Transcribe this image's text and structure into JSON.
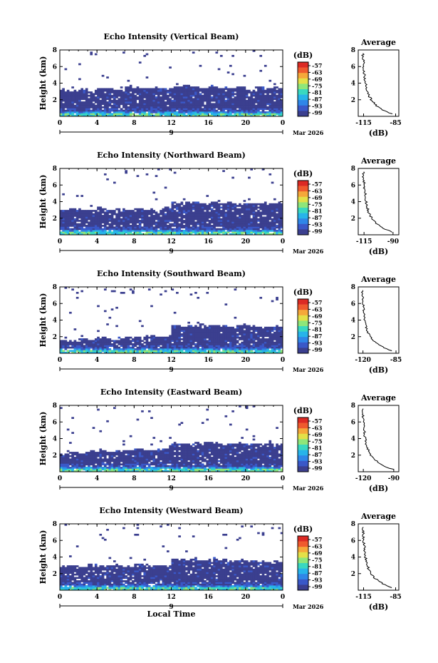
{
  "chart_data": [
    {
      "type": "heatmap",
      "title": "Echo Intensity (Vertical Beam)",
      "ylabel": "Height (km)",
      "xticks": [
        "0",
        "4",
        "8",
        "12",
        "16",
        "20",
        "0"
      ],
      "yticks": [
        "2",
        "4",
        "6",
        "8"
      ],
      "xlim": [
        0,
        24
      ],
      "ylim": [
        0,
        8
      ],
      "date_day": "9",
      "date_month": "Mar 2026",
      "colorbar_label": "(dB)",
      "colorbar_ticks": [
        "-57",
        "-63",
        "-69",
        "-75",
        "-81",
        "-87",
        "-93",
        "-99"
      ],
      "dense_top_km": [
        3.2,
        3.0,
        3.4,
        3.0,
        3.3,
        3.4,
        3.1,
        3.6,
        3.5,
        3.4,
        3.5,
        3.3,
        3.6,
        3.7,
        3.5,
        3.4,
        3.6,
        3.5,
        3.4,
        3.6,
        3.3,
        3.5,
        3.4,
        3.4
      ],
      "average": {
        "title": "Average",
        "xlabel": "(dB)",
        "xticks": [
          "-115",
          "-85"
        ],
        "yticks": [
          "2",
          "4",
          "6",
          "8"
        ],
        "xlim": [
          -120,
          -82
        ],
        "ylim": [
          0,
          8
        ]
      }
    },
    {
      "type": "heatmap",
      "title": "Echo Intensity (Northward Beam)",
      "ylabel": "Height (km)",
      "xticks": [
        "0",
        "4",
        "8",
        "12",
        "16",
        "20",
        "0"
      ],
      "yticks": [
        "2",
        "4",
        "6",
        "8"
      ],
      "xlim": [
        0,
        24
      ],
      "ylim": [
        0,
        8
      ],
      "date_day": "9",
      "date_month": "Mar 2026",
      "colorbar_label": "(dB)",
      "colorbar_ticks": [
        "-57",
        "-63",
        "-69",
        "-75",
        "-81",
        "-87",
        "-93",
        "-99"
      ],
      "dense_top_km": [
        3.0,
        3.2,
        3.1,
        3.0,
        3.3,
        3.0,
        3.1,
        3.0,
        3.2,
        3.1,
        3.0,
        3.2,
        3.9,
        3.8,
        3.9,
        3.8,
        3.9,
        3.7,
        3.9,
        3.8,
        3.9,
        3.8,
        3.9,
        3.8
      ],
      "average": {
        "title": "Average",
        "xlabel": "(dB)",
        "xticks": [
          "-115",
          "-90"
        ],
        "yticks": [
          "2",
          "4",
          "6",
          "8"
        ],
        "xlim": [
          -120,
          -85
        ],
        "ylim": [
          0,
          8
        ]
      }
    },
    {
      "type": "heatmap",
      "title": "Echo Intensity (Southward Beam)",
      "ylabel": "Height (km)",
      "xticks": [
        "0",
        "4",
        "8",
        "12",
        "16",
        "20",
        "0"
      ],
      "yticks": [
        "2",
        "4",
        "6",
        "8"
      ],
      "xlim": [
        0,
        24
      ],
      "ylim": [
        0,
        8
      ],
      "date_day": "9",
      "date_month": "Mar 2026",
      "colorbar_label": "(dB)",
      "colorbar_ticks": [
        "-57",
        "-63",
        "-69",
        "-75",
        "-81",
        "-87",
        "-93",
        "-99"
      ],
      "dense_top_km": [
        1.6,
        1.5,
        1.8,
        1.6,
        1.9,
        1.7,
        1.8,
        2.0,
        1.9,
        2.1,
        2.0,
        2.1,
        3.4,
        3.3,
        3.4,
        3.5,
        3.4,
        3.3,
        3.2,
        3.4,
        3.3,
        3.2,
        3.3,
        3.2
      ],
      "average": {
        "title": "Average",
        "xlabel": "(dB)",
        "xticks": [
          "-120",
          "-85"
        ],
        "yticks": [
          "2",
          "4",
          "6",
          "8"
        ],
        "xlim": [
          -125,
          -82
        ],
        "ylim": [
          0,
          8
        ]
      }
    },
    {
      "type": "heatmap",
      "title": "Echo Intensity (Eastward Beam)",
      "ylabel": "Height (km)",
      "xticks": [
        "0",
        "4",
        "8",
        "12",
        "16",
        "20",
        "0"
      ],
      "yticks": [
        "2",
        "4",
        "6",
        "8"
      ],
      "xlim": [
        0,
        24
      ],
      "ylim": [
        0,
        8
      ],
      "date_day": "9",
      "date_month": "Mar 2026",
      "colorbar_label": "(dB)",
      "colorbar_ticks": [
        "-57",
        "-63",
        "-69",
        "-75",
        "-81",
        "-87",
        "-93",
        "-99"
      ],
      "dense_top_km": [
        2.2,
        2.4,
        2.3,
        2.5,
        2.6,
        2.4,
        2.5,
        2.6,
        2.8,
        2.6,
        2.7,
        2.8,
        3.5,
        3.4,
        3.5,
        3.4,
        3.5,
        3.3,
        3.4,
        3.5,
        3.4,
        3.3,
        3.4,
        3.3
      ],
      "average": {
        "title": "Average",
        "xlabel": "(dB)",
        "xticks": [
          "-120",
          "-90"
        ],
        "yticks": [
          "2",
          "4",
          "6",
          "8"
        ],
        "xlim": [
          -125,
          -85
        ],
        "ylim": [
          0,
          8
        ]
      }
    },
    {
      "type": "heatmap",
      "title": "Echo Intensity (Westward Beam)",
      "ylabel": "Height (km)",
      "xlabel": "Local Time",
      "xticks": [
        "0",
        "4",
        "8",
        "12",
        "16",
        "20",
        "0"
      ],
      "yticks": [
        "2",
        "4",
        "6",
        "8"
      ],
      "xlim": [
        0,
        24
      ],
      "ylim": [
        0,
        8
      ],
      "date_day": "9",
      "date_month": "Mar 2026",
      "colorbar_label": "(dB)",
      "colorbar_ticks": [
        "-57",
        "-63",
        "-69",
        "-75",
        "-81",
        "-87",
        "-93",
        "-99"
      ],
      "dense_top_km": [
        2.9,
        3.0,
        2.8,
        3.1,
        2.9,
        3.0,
        3.1,
        2.9,
        3.2,
        3.0,
        3.1,
        2.9,
        3.8,
        3.7,
        3.8,
        3.6,
        3.8,
        3.7,
        3.5,
        3.7,
        3.6,
        3.5,
        3.4,
        3.5
      ],
      "average": {
        "title": "Average",
        "xlabel": "(dB)",
        "xticks": [
          "-115",
          "-85"
        ],
        "yticks": [
          "2",
          "4",
          "6",
          "8"
        ],
        "xlim": [
          -120,
          -82
        ],
        "ylim": [
          0,
          8
        ]
      }
    }
  ],
  "colors": {
    "background_fill": "#3b3f8f",
    "scale": [
      "#3b3f8f",
      "#3a58c8",
      "#2f86e8",
      "#27b4ea",
      "#39d8c0",
      "#8ee67a",
      "#e3e048",
      "#f5a83a",
      "#ef5a2e",
      "#dc2a24"
    ]
  }
}
